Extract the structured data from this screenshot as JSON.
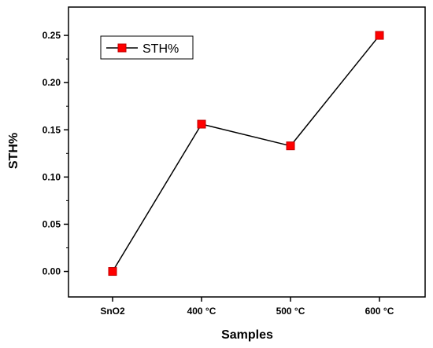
{
  "chart_data": {
    "type": "line",
    "categories": [
      "SnO2",
      "400 °C",
      "500 °C",
      "600 °C"
    ],
    "series": [
      {
        "name": "STH%",
        "values": [
          0.0,
          0.156,
          0.133,
          0.25
        ]
      }
    ],
    "xlabel": "Samples",
    "ylabel": "STH%",
    "ylim": [
      -0.027,
      0.28
    ],
    "yticks": [
      0.0,
      0.05,
      0.1,
      0.15,
      0.2,
      0.25
    ],
    "ytick_labels": [
      "0.00",
      "0.05",
      "0.10",
      "0.15",
      "0.20",
      "0.25"
    ],
    "grid": false,
    "legend_position": "top-left",
    "colors": {
      "line": "#000000",
      "marker": "#ff0000",
      "marker_edge": "#c00000",
      "axis": "#000000"
    }
  }
}
